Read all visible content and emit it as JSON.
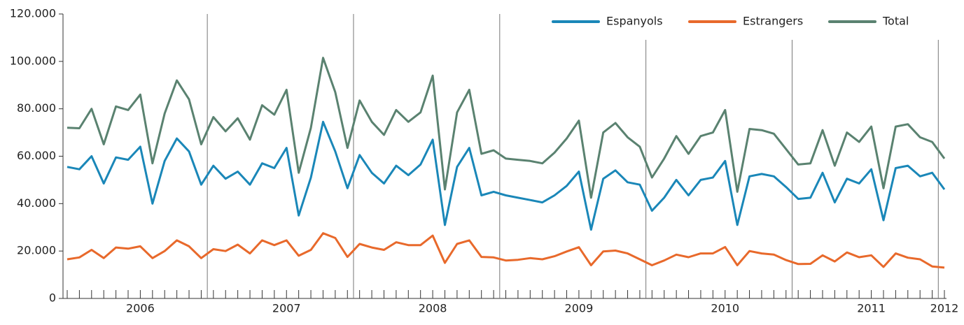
{
  "chart_data": {
    "type": "line",
    "categories": [
      null,
      null,
      null,
      null,
      null,
      null,
      "2006",
      null,
      null,
      null,
      null,
      null,
      null,
      null,
      null,
      null,
      null,
      null,
      "2007",
      null,
      null,
      null,
      null,
      null,
      null,
      null,
      null,
      null,
      null,
      null,
      "2008",
      null,
      null,
      null,
      null,
      null,
      null,
      null,
      null,
      null,
      null,
      null,
      "2009",
      null,
      null,
      null,
      null,
      null,
      null,
      null,
      null,
      null,
      null,
      null,
      "2010",
      null,
      null,
      null,
      null,
      null,
      null,
      null,
      null,
      null,
      null,
      null,
      "2011",
      null,
      null,
      null,
      null,
      null,
      "2012"
    ],
    "series": [
      {
        "name": "Espanyols",
        "color": "#1a87b8",
        "values": [
          55500,
          54500,
          60000,
          48500,
          59500,
          58500,
          64000,
          40000,
          58000,
          67500,
          62000,
          48000,
          56000,
          50500,
          53500,
          48000,
          57000,
          55000,
          63500,
          35000,
          51000,
          74500,
          62000,
          46500,
          60500,
          53000,
          48500,
          56000,
          52000,
          56500,
          67000,
          31000,
          55500,
          63500,
          43500,
          45000,
          43500,
          42500,
          41500,
          40500,
          43500,
          47500,
          53500,
          29000,
          50500,
          54000,
          49000,
          48000,
          37000,
          42500,
          50000,
          43500,
          50000,
          51000,
          58000,
          31000,
          51500,
          52500,
          51500,
          47000,
          42000,
          42500,
          53000,
          40500,
          50500,
          48500,
          54500,
          33000,
          55000,
          56000,
          51500,
          53000,
          46000
        ]
      },
      {
        "name": "Estrangers",
        "color": "#e8692b",
        "values": [
          16500,
          17300,
          20500,
          17000,
          21500,
          21000,
          22000,
          17000,
          20000,
          24500,
          22000,
          17000,
          20800,
          20000,
          22700,
          19000,
          24500,
          22500,
          24500,
          18000,
          20500,
          27500,
          25500,
          17500,
          23000,
          21500,
          20500,
          23700,
          22500,
          22500,
          26500,
          15000,
          23000,
          24500,
          17500,
          17300,
          16000,
          16300,
          17000,
          16500,
          17800,
          19800,
          21600,
          14000,
          19800,
          20200,
          19000,
          16500,
          14000,
          16000,
          18500,
          17400,
          19000,
          19000,
          21700,
          14000,
          20000,
          19000,
          18500,
          16200,
          14500,
          14600,
          18200,
          15600,
          19400,
          17400,
          18200,
          13300,
          19000,
          17200,
          16500,
          13500,
          13000
        ]
      },
      {
        "name": "Total",
        "color": "#5a8270",
        "values": [
          72000,
          71800,
          80000,
          65000,
          81000,
          79500,
          86000,
          57000,
          78000,
          92000,
          84000,
          65000,
          76500,
          70500,
          76000,
          67000,
          81500,
          77500,
          88000,
          53000,
          72000,
          101500,
          87000,
          63500,
          83500,
          74500,
          69000,
          79500,
          74500,
          78500,
          94000,
          46000,
          78500,
          88000,
          61000,
          62500,
          59000,
          58500,
          58000,
          57000,
          61500,
          67500,
          75000,
          42500,
          70000,
          74000,
          68000,
          64000,
          51000,
          59000,
          68500,
          61000,
          68500,
          70000,
          79500,
          45000,
          71500,
          71000,
          69500,
          63000,
          56500,
          57000,
          71000,
          56000,
          70000,
          66000,
          72500,
          46500,
          72500,
          73500,
          68000,
          66000,
          59000
        ]
      }
    ],
    "ylim": [
      0,
      120000
    ],
    "yticks": [
      0,
      {
        "value": 20000,
        "label": "20.000"
      },
      {
        "value": 40000,
        "label": "40.000"
      },
      {
        "value": 60000,
        "label": "60.000"
      },
      {
        "value": 80000,
        "label": "80.000"
      },
      {
        "value": 100000,
        "label": "100.000"
      },
      {
        "value": 120000,
        "label": "120.000"
      }
    ],
    "legend": "upper right"
  }
}
